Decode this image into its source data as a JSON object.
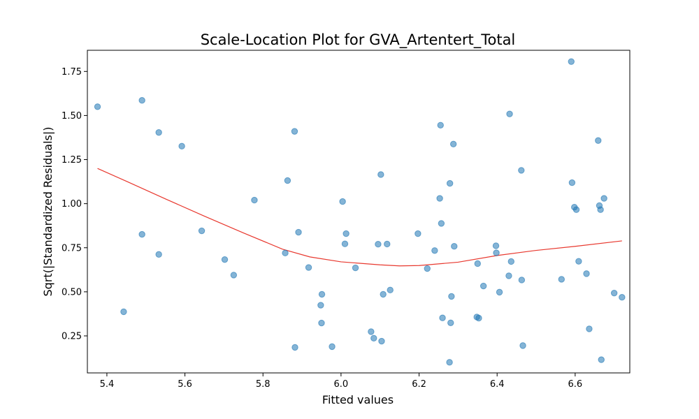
{
  "chart_data": {
    "type": "scatter",
    "title": "Scale-Location Plot for GVA_Artentert_Total",
    "xlabel": "Fitted values",
    "ylabel": "Sqrt(|Standardized Residuals|)",
    "xlim": [
      5.35,
      6.74
    ],
    "ylim": [
      0.04,
      1.87
    ],
    "x_ticks": [
      5.4,
      5.6,
      5.8,
      6.0,
      6.2,
      6.4,
      6.6
    ],
    "x_tick_labels": [
      "5.4",
      "5.6",
      "5.8",
      "6.0",
      "6.2",
      "6.4",
      "6.6"
    ],
    "y_ticks": [
      0.25,
      0.5,
      0.75,
      1.0,
      1.25,
      1.5,
      1.75
    ],
    "y_tick_labels": [
      "0.25",
      "0.50",
      "0.75",
      "1.00",
      "1.25",
      "1.50",
      "1.75"
    ],
    "grid": false,
    "colors": {
      "points": "#1f77b4",
      "trend": "#e8382e"
    },
    "points": [
      [
        5.376,
        1.55
      ],
      [
        5.443,
        0.387
      ],
      [
        5.49,
        1.586
      ],
      [
        5.49,
        0.826
      ],
      [
        5.533,
        1.404
      ],
      [
        5.533,
        0.712
      ],
      [
        5.592,
        1.326
      ],
      [
        5.643,
        0.846
      ],
      [
        5.702,
        0.683
      ],
      [
        5.725,
        0.595
      ],
      [
        5.778,
        1.02
      ],
      [
        5.857,
        0.72
      ],
      [
        5.863,
        1.131
      ],
      [
        5.881,
        1.41
      ],
      [
        5.882,
        0.185
      ],
      [
        5.891,
        0.838
      ],
      [
        5.917,
        0.638
      ],
      [
        5.948,
        0.424
      ],
      [
        5.95,
        0.323
      ],
      [
        5.951,
        0.486
      ],
      [
        5.977,
        0.189
      ],
      [
        6.004,
        1.012
      ],
      [
        6.01,
        0.772
      ],
      [
        6.013,
        0.83
      ],
      [
        6.037,
        0.636
      ],
      [
        6.077,
        0.274
      ],
      [
        6.084,
        0.237
      ],
      [
        6.095,
        0.77
      ],
      [
        6.102,
        1.165
      ],
      [
        6.104,
        0.22
      ],
      [
        6.108,
        0.486
      ],
      [
        6.118,
        0.771
      ],
      [
        6.126,
        0.51
      ],
      [
        6.197,
        0.83
      ],
      [
        6.221,
        0.632
      ],
      [
        6.24,
        0.734
      ],
      [
        6.253,
        1.03
      ],
      [
        6.255,
        1.445
      ],
      [
        6.257,
        0.888
      ],
      [
        6.26,
        0.352
      ],
      [
        6.278,
        0.1
      ],
      [
        6.279,
        1.115
      ],
      [
        6.281,
        0.324
      ],
      [
        6.283,
        0.474
      ],
      [
        6.288,
        1.338
      ],
      [
        6.29,
        0.758
      ],
      [
        6.348,
        0.357
      ],
      [
        6.35,
        0.66
      ],
      [
        6.353,
        0.351
      ],
      [
        6.365,
        0.533
      ],
      [
        6.397,
        0.761
      ],
      [
        6.398,
        0.721
      ],
      [
        6.406,
        0.498
      ],
      [
        6.43,
        0.591
      ],
      [
        6.432,
        1.509
      ],
      [
        6.436,
        0.672
      ],
      [
        6.462,
        1.189
      ],
      [
        6.463,
        0.567
      ],
      [
        6.466,
        0.195
      ],
      [
        6.565,
        0.571
      ],
      [
        6.59,
        1.806
      ],
      [
        6.592,
        1.119
      ],
      [
        6.598,
        0.98
      ],
      [
        6.603,
        0.966
      ],
      [
        6.609,
        0.673
      ],
      [
        6.629,
        0.603
      ],
      [
        6.636,
        0.29
      ],
      [
        6.659,
        1.358
      ],
      [
        6.662,
        0.989
      ],
      [
        6.665,
        0.966
      ],
      [
        6.667,
        0.115
      ],
      [
        6.674,
        1.03
      ],
      [
        6.7,
        0.493
      ],
      [
        6.72,
        0.469
      ]
    ],
    "trend_line": [
      [
        5.376,
        1.2
      ],
      [
        5.45,
        1.127
      ],
      [
        5.55,
        1.027
      ],
      [
        5.65,
        0.929
      ],
      [
        5.75,
        0.834
      ],
      [
        5.85,
        0.742
      ],
      [
        5.92,
        0.698
      ],
      [
        6.0,
        0.67
      ],
      [
        6.1,
        0.653
      ],
      [
        6.15,
        0.647
      ],
      [
        6.2,
        0.649
      ],
      [
        6.3,
        0.668
      ],
      [
        6.4,
        0.706
      ],
      [
        6.5,
        0.735
      ],
      [
        6.6,
        0.758
      ],
      [
        6.72,
        0.789
      ]
    ]
  }
}
